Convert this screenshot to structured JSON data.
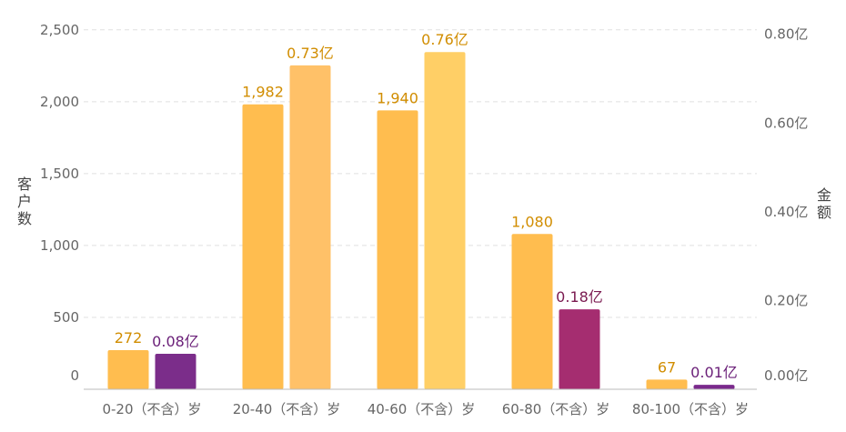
{
  "chart_data": {
    "type": "bar",
    "categories": [
      "0-20（不含）岁",
      "20-40（不含）岁",
      "40-60（不含）岁",
      "60-80（不含）岁",
      "80-100（不含）岁"
    ],
    "y_left": {
      "label": "客户数",
      "ticks": [
        "0",
        "500",
        "1,000",
        "1,500",
        "2,000",
        "2,500"
      ],
      "ylim": [
        0,
        2600
      ]
    },
    "y_right": {
      "label": "金额",
      "ticks": [
        "0.00亿",
        "0.20亿",
        "0.40亿",
        "0.60亿",
        "0.80亿"
      ],
      "ylim": [
        0,
        0.8424
      ]
    },
    "series": [
      {
        "axis": "left",
        "values": [
          272,
          1982,
          1940,
          1080,
          67
        ],
        "labels": [
          "272",
          "1,982",
          "1,940",
          "1,080",
          "67"
        ],
        "color": "#ffbd4f",
        "label_color": "#d18d00"
      },
      {
        "axis": "right",
        "values": [
          0.08,
          0.73,
          0.76,
          0.18,
          0.01
        ],
        "labels": [
          "0.08亿",
          "0.73亿",
          "0.76亿",
          "0.18亿",
          "0.01亿"
        ],
        "colors": [
          "#7b2d8a",
          "#ffc168",
          "#ffcf66",
          "#a52d70",
          "#7a2a8c"
        ],
        "label_colors": [
          "#6a1f78",
          "#d18d00",
          "#d18d00",
          "#7a1a50",
          "#6a1f78"
        ]
      }
    ],
    "grid": true
  }
}
